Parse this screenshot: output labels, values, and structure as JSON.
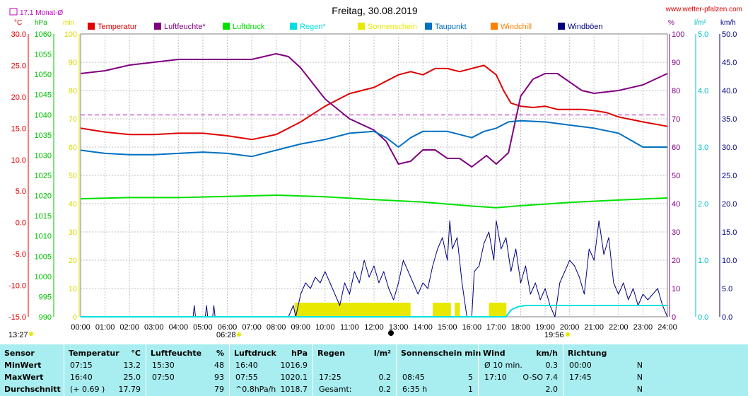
{
  "header": {
    "title": "Freitag, 30.08.2019",
    "site": "www.wetter-pfalzen.com",
    "month_avg": "17.1 Monat-Ø"
  },
  "axis_units": {
    "temp": "°C",
    "hpa": "hPa",
    "min": "min",
    "pct": "%",
    "lm2": "l/m²",
    "kmh": "km/h"
  },
  "legend": [
    {
      "label": "Temperatur",
      "color": "#e00000"
    },
    {
      "label": "Luftfeuchte*",
      "color": "#800080"
    },
    {
      "label": "Luftdruck",
      "color": "#00e000"
    },
    {
      "label": "Regen*",
      "color": "#00e0e0"
    },
    {
      "label": "Sonnenschein",
      "color": "#e8e800"
    },
    {
      "label": "Taupunkt",
      "color": "#0070c0"
    },
    {
      "label": "Windchill",
      "color": "#ff8000"
    },
    {
      "label": "Windböen",
      "color": "#000080"
    }
  ],
  "time_markers": {
    "left": "13:27",
    "sunrise": "06:28",
    "sunset": "19:56"
  },
  "chart_data": {
    "type": "line",
    "title": "Freitag, 30.08.2019",
    "x_ticks": [
      "00:00",
      "01:00",
      "02:00",
      "03:00",
      "04:00",
      "05:00",
      "06:00",
      "07:00",
      "08:00",
      "09:00",
      "10:00",
      "11:00",
      "12:00",
      "13:00",
      "14:00",
      "15:00",
      "16:00",
      "17:00",
      "18:00",
      "19:00",
      "20:00",
      "21:00",
      "22:00",
      "23:00",
      "24:00"
    ],
    "axes": {
      "temp": {
        "range": [
          -15,
          30
        ],
        "ticks": [
          "30.0",
          "25.0",
          "20.0",
          "15.0",
          "10.0",
          "5.0",
          "0.0",
          "-5.0",
          "-10.0",
          "-15.0"
        ]
      },
      "pressure": {
        "range": [
          990,
          1060
        ],
        "ticks": [
          "1060",
          "1055",
          "1050",
          "1045",
          "1040",
          "1035",
          "1030",
          "1025",
          "1020",
          "1015",
          "1010",
          "1005",
          "1000",
          "995",
          "990"
        ]
      },
      "minutes": {
        "range": [
          0,
          100
        ],
        "ticks": [
          "100",
          "90",
          "80",
          "70",
          "60",
          "50",
          "40",
          "30",
          "20",
          "10",
          "0"
        ]
      },
      "humidity_pct": {
        "range": [
          0,
          100
        ],
        "ticks": [
          "100",
          "90",
          "80",
          "70",
          "60",
          "50",
          "40",
          "30",
          "20",
          "10",
          "0"
        ]
      },
      "rain_lm2": {
        "range": [
          0,
          5
        ],
        "ticks": [
          "5.0",
          "4.0",
          "3.0",
          "2.0",
          "1.0",
          "0.0"
        ]
      },
      "wind_kmh": {
        "range": [
          0,
          50
        ],
        "ticks": [
          "50.0",
          "45.0",
          "40.0",
          "35.0",
          "30.0",
          "25.0",
          "20.0",
          "15.0",
          "10.0",
          "5.0",
          "0.0"
        ]
      }
    },
    "month_avg_temp": 17.1,
    "grid": true,
    "series": [
      {
        "name": "Temperatur",
        "axis": "temp",
        "color": "#e00000",
        "points": [
          [
            0,
            15.0
          ],
          [
            1,
            14.4
          ],
          [
            2,
            14.0
          ],
          [
            3,
            14.0
          ],
          [
            4,
            14.2
          ],
          [
            5,
            14.2
          ],
          [
            6,
            13.8
          ],
          [
            7,
            13.2
          ],
          [
            8,
            14.0
          ],
          [
            9,
            16.0
          ],
          [
            10,
            18.5
          ],
          [
            11,
            20.5
          ],
          [
            12,
            21.5
          ],
          [
            12.5,
            22.5
          ],
          [
            13,
            23.5
          ],
          [
            13.5,
            24.0
          ],
          [
            14,
            23.5
          ],
          [
            14.5,
            24.5
          ],
          [
            15,
            24.5
          ],
          [
            15.5,
            24.0
          ],
          [
            16,
            24.5
          ],
          [
            16.5,
            25.0
          ],
          [
            17,
            23.5
          ],
          [
            17.3,
            21.0
          ],
          [
            17.6,
            19.0
          ],
          [
            18,
            18.5
          ],
          [
            18.5,
            18.3
          ],
          [
            19,
            18.5
          ],
          [
            19.5,
            18.0
          ],
          [
            20,
            18.0
          ],
          [
            20.5,
            18.0
          ],
          [
            21,
            17.8
          ],
          [
            21.5,
            17.5
          ],
          [
            22,
            16.8
          ],
          [
            22.5,
            16.4
          ],
          [
            23,
            16.0
          ],
          [
            24,
            15.3
          ]
        ]
      },
      {
        "name": "Luftfeuchte*",
        "axis": "humidity_pct",
        "color": "#800080",
        "points": [
          [
            0,
            86
          ],
          [
            1,
            87
          ],
          [
            2,
            89
          ],
          [
            3,
            90
          ],
          [
            4,
            91
          ],
          [
            5,
            91
          ],
          [
            6,
            91
          ],
          [
            7,
            91
          ],
          [
            7.5,
            92
          ],
          [
            8,
            93
          ],
          [
            8.5,
            92
          ],
          [
            9,
            88
          ],
          [
            10,
            77
          ],
          [
            11,
            70
          ],
          [
            12,
            66
          ],
          [
            12.5,
            62
          ],
          [
            13,
            54
          ],
          [
            13.5,
            55
          ],
          [
            14,
            59
          ],
          [
            14.5,
            59
          ],
          [
            15,
            56
          ],
          [
            15.5,
            56
          ],
          [
            16,
            53
          ],
          [
            16.3,
            55
          ],
          [
            16.6,
            57
          ],
          [
            17,
            54
          ],
          [
            17.5,
            58
          ],
          [
            17.8,
            70
          ],
          [
            18,
            78
          ],
          [
            18.5,
            84
          ],
          [
            19,
            86
          ],
          [
            19.5,
            86
          ],
          [
            20,
            83
          ],
          [
            20.5,
            80
          ],
          [
            21,
            79
          ],
          [
            22,
            80
          ],
          [
            23,
            82
          ],
          [
            24,
            86
          ]
        ]
      },
      {
        "name": "Luftdruck",
        "axis": "pressure",
        "color": "#00e000",
        "points": [
          [
            0,
            1019.2
          ],
          [
            2,
            1019.5
          ],
          [
            4,
            1019.5
          ],
          [
            6,
            1019.8
          ],
          [
            8,
            1020.1
          ],
          [
            10,
            1019.7
          ],
          [
            12,
            1019.0
          ],
          [
            14,
            1018.4
          ],
          [
            16,
            1017.4
          ],
          [
            17,
            1017.0
          ],
          [
            18,
            1017.5
          ],
          [
            20,
            1018.3
          ],
          [
            22,
            1018.9
          ],
          [
            24,
            1019.4
          ]
        ]
      },
      {
        "name": "Taupunkt",
        "axis": "temp",
        "color": "#0070c0",
        "points": [
          [
            0,
            11.5
          ],
          [
            1,
            11.0
          ],
          [
            2,
            10.8
          ],
          [
            3,
            10.8
          ],
          [
            4,
            11.0
          ],
          [
            5,
            11.2
          ],
          [
            6,
            11.0
          ],
          [
            7,
            10.5
          ],
          [
            8,
            11.5
          ],
          [
            9,
            12.5
          ],
          [
            10,
            13.2
          ],
          [
            11,
            14.2
          ],
          [
            12,
            14.5
          ],
          [
            12.5,
            13.5
          ],
          [
            13,
            12.0
          ],
          [
            13.5,
            13.5
          ],
          [
            14,
            14.5
          ],
          [
            15,
            14.5
          ],
          [
            15.5,
            14.0
          ],
          [
            16,
            13.5
          ],
          [
            16.5,
            14.5
          ],
          [
            17,
            15.0
          ],
          [
            17.5,
            16.0
          ],
          [
            18,
            16.2
          ],
          [
            19,
            16.0
          ],
          [
            20,
            15.5
          ],
          [
            21,
            15.0
          ],
          [
            22,
            14.2
          ],
          [
            23,
            12.0
          ],
          [
            24,
            12.0
          ]
        ]
      },
      {
        "name": "Windböen",
        "axis": "wind_kmh",
        "color": "#000080",
        "points": [
          [
            0,
            0
          ],
          [
            4.6,
            0
          ],
          [
            4.65,
            2
          ],
          [
            4.7,
            0
          ],
          [
            5.1,
            0
          ],
          [
            5.15,
            2
          ],
          [
            5.2,
            0
          ],
          [
            5.4,
            0
          ],
          [
            5.45,
            2
          ],
          [
            5.5,
            0
          ],
          [
            8.5,
            0
          ],
          [
            8.7,
            2
          ],
          [
            8.8,
            0
          ],
          [
            9.0,
            4
          ],
          [
            9.2,
            6
          ],
          [
            9.4,
            5
          ],
          [
            9.6,
            7
          ],
          [
            9.8,
            6
          ],
          [
            10,
            8
          ],
          [
            10.2,
            6
          ],
          [
            10.4,
            4
          ],
          [
            10.6,
            2
          ],
          [
            10.8,
            6
          ],
          [
            11,
            4
          ],
          [
            11.2,
            8
          ],
          [
            11.4,
            6
          ],
          [
            11.6,
            10
          ],
          [
            11.8,
            7
          ],
          [
            12,
            9
          ],
          [
            12.2,
            6
          ],
          [
            12.4,
            8
          ],
          [
            12.6,
            5
          ],
          [
            12.8,
            3
          ],
          [
            13,
            6
          ],
          [
            13.2,
            10
          ],
          [
            13.4,
            8
          ],
          [
            13.6,
            6
          ],
          [
            13.8,
            4
          ],
          [
            14,
            6
          ],
          [
            14.2,
            5
          ],
          [
            14.4,
            9
          ],
          [
            14.6,
            12
          ],
          [
            14.8,
            14
          ],
          [
            15,
            10
          ],
          [
            15.1,
            17
          ],
          [
            15.2,
            12
          ],
          [
            15.4,
            14
          ],
          [
            15.6,
            6
          ],
          [
            15.8,
            0
          ],
          [
            16,
            0
          ],
          [
            16.1,
            8
          ],
          [
            16.3,
            9
          ],
          [
            16.5,
            13
          ],
          [
            16.7,
            15
          ],
          [
            16.9,
            10
          ],
          [
            17,
            17
          ],
          [
            17.2,
            12
          ],
          [
            17.4,
            14
          ],
          [
            17.6,
            8
          ],
          [
            17.8,
            12
          ],
          [
            18,
            6
          ],
          [
            18.2,
            9
          ],
          [
            18.4,
            4
          ],
          [
            18.6,
            6
          ],
          [
            18.8,
            3
          ],
          [
            19,
            5
          ],
          [
            19.2,
            2
          ],
          [
            19.4,
            0
          ],
          [
            19.6,
            6
          ],
          [
            19.8,
            8
          ],
          [
            20,
            10
          ],
          [
            20.2,
            9
          ],
          [
            20.4,
            7
          ],
          [
            20.6,
            4
          ],
          [
            20.8,
            12
          ],
          [
            21,
            10
          ],
          [
            21.2,
            17
          ],
          [
            21.4,
            11
          ],
          [
            21.6,
            14
          ],
          [
            21.8,
            6
          ],
          [
            22,
            4
          ],
          [
            22.2,
            6
          ],
          [
            22.4,
            3
          ],
          [
            22.6,
            5
          ],
          [
            22.8,
            2
          ],
          [
            23,
            4
          ],
          [
            23.2,
            3
          ],
          [
            23.4,
            4
          ],
          [
            23.6,
            5
          ],
          [
            23.8,
            2
          ],
          [
            24,
            0
          ]
        ]
      },
      {
        "name": "Regen*",
        "axis": "rain_lm2",
        "color": "#00e0e0",
        "points": [
          [
            0,
            0
          ],
          [
            17.4,
            0
          ],
          [
            17.6,
            0.12
          ],
          [
            17.9,
            0.18
          ],
          [
            18.2,
            0.2
          ],
          [
            18.6,
            0.2
          ],
          [
            19,
            0.2
          ],
          [
            24,
            0.2
          ]
        ]
      }
    ],
    "sunshine_bars": {
      "name": "Sonnenschein",
      "axis": "minutes",
      "color": "#e8e800",
      "intervals": [
        [
          8.75,
          13.45
        ],
        [
          14.4,
          15.1
        ],
        [
          15.3,
          15.5
        ],
        [
          16.7,
          17.4
        ]
      ],
      "value": 5
    }
  },
  "table": {
    "columns": [
      {
        "head": "Sensor",
        "unit": "",
        "rows": [
          "MinWert",
          "MaxWert",
          "Durchschnitt"
        ]
      },
      {
        "head": "Temperatur",
        "unit": "°C",
        "rows": [
          [
            "07:15",
            "13.2"
          ],
          [
            "16:40",
            "25.0"
          ],
          [
            "(+ 0.69 )",
            "17.79"
          ]
        ]
      },
      {
        "head": "Luftfeuchte",
        "unit": "%",
        "rows": [
          [
            "15:30",
            "48"
          ],
          [
            "07:50",
            "93"
          ],
          [
            "",
            "79"
          ]
        ]
      },
      {
        "head": "Luftdruck",
        "unit": "hPa",
        "rows": [
          [
            "16:40",
            "1016.9"
          ],
          [
            "07:55",
            "1020.1"
          ],
          [
            "^0.8hPa/h",
            "1018.7"
          ]
        ]
      },
      {
        "head": "Regen",
        "unit": "l/m²",
        "rows": [
          [
            "",
            ""
          ],
          [
            "17:25",
            "0.2"
          ],
          [
            "Gesamt:",
            "0.2"
          ]
        ]
      },
      {
        "head": "Sonnenschein min",
        "unit": "",
        "rows": [
          [
            "",
            ""
          ],
          [
            "08:45",
            "5"
          ],
          [
            "6:35 h",
            "1"
          ]
        ]
      },
      {
        "head": "Wind",
        "unit": "km/h",
        "rows": [
          [
            "Ø 10 min.",
            "0.3"
          ],
          [
            "17:10",
            "O-SO 7.4"
          ],
          [
            "",
            "2.0"
          ]
        ]
      },
      {
        "head": "Richtung",
        "unit": "",
        "rows": [
          [
            "00:00",
            "N"
          ],
          [
            "17:45",
            "N"
          ],
          [
            "",
            "N"
          ]
        ]
      }
    ]
  }
}
